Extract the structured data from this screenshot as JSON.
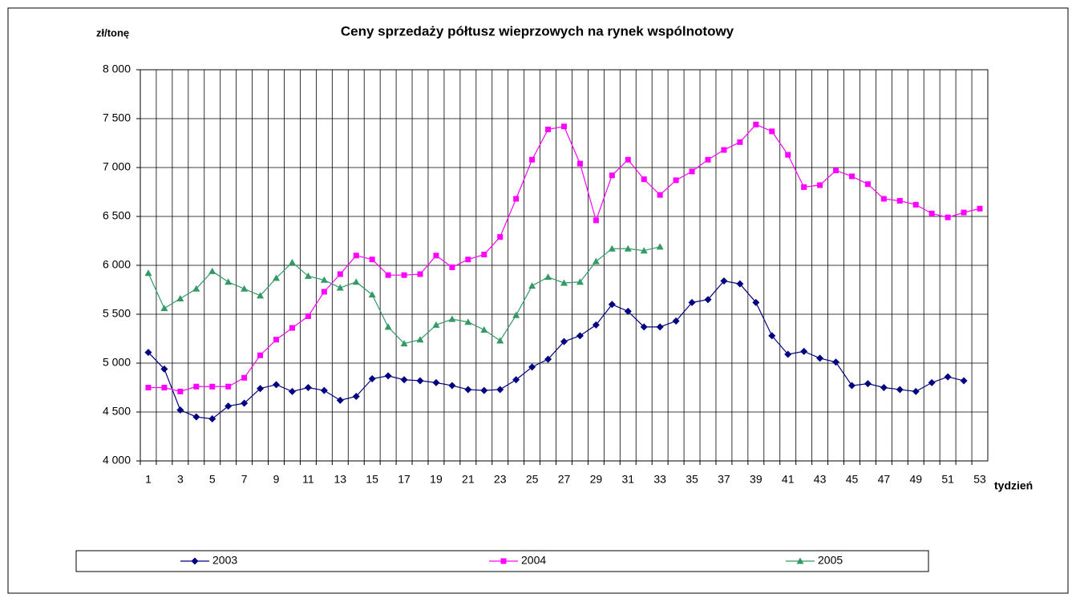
{
  "chart_data": {
    "type": "line",
    "title": "Ceny sprzedaży półtusz wieprzowych na rynek wspólnotowy",
    "y_label": "zł/tonę",
    "x_label": "tydzień",
    "categories": [
      1,
      null,
      3,
      null,
      5,
      null,
      7,
      null,
      9,
      null,
      11,
      null,
      13,
      null,
      15,
      null,
      17,
      null,
      19,
      null,
      21,
      null,
      23,
      null,
      25,
      null,
      27,
      null,
      29,
      null,
      31,
      null,
      33,
      null,
      35,
      null,
      37,
      null,
      39,
      null,
      41,
      null,
      43,
      null,
      45,
      null,
      47,
      null,
      49,
      null,
      51,
      null,
      53
    ],
    "ylim": [
      4000,
      8000
    ],
    "yticks": [
      {
        "value": 4000,
        "label": "4 000"
      },
      {
        "value": 4500,
        "label": "4 500"
      },
      {
        "value": 5000,
        "label": "5 000"
      },
      {
        "value": 5500,
        "label": "5 500"
      },
      {
        "value": 6000,
        "label": "6 000"
      },
      {
        "value": 6500,
        "label": "6 500"
      },
      {
        "value": 7000,
        "label": "7 000"
      },
      {
        "value": 7500,
        "label": "7 500"
      },
      {
        "value": 8000,
        "label": "8 000"
      }
    ],
    "grid": true,
    "legend": "bottom",
    "series": [
      {
        "name": "2003",
        "color": "#000080",
        "marker": "diamond",
        "values": [
          5110,
          4940,
          4520,
          4450,
          4430,
          4560,
          4590,
          4740,
          4780,
          4710,
          4750,
          4720,
          4620,
          4660,
          4840,
          4870,
          4830,
          4820,
          4800,
          4770,
          4730,
          4720,
          4730,
          4830,
          4960,
          5040,
          5220,
          5280,
          5390,
          5600,
          5530,
          5370,
          5370,
          5430,
          5620,
          5650,
          5840,
          5810,
          5620,
          5280,
          5090,
          5120,
          5050,
          5010,
          4770,
          4790,
          4750,
          4730,
          4710,
          4800,
          4860,
          4820,
          null
        ]
      },
      {
        "name": "2004",
        "color": "#ff00ff",
        "marker": "square",
        "values": [
          4750,
          4750,
          4710,
          4760,
          4760,
          4760,
          4850,
          5080,
          5240,
          5360,
          5480,
          5730,
          5910,
          6100,
          6060,
          5900,
          5900,
          5910,
          6100,
          5980,
          6060,
          6110,
          6290,
          6680,
          7080,
          7390,
          7420,
          7040,
          6460,
          6920,
          7080,
          6880,
          6720,
          6870,
          6960,
          7080,
          7180,
          7260,
          7440,
          7370,
          7130,
          6800,
          6820,
          6970,
          6910,
          6830,
          6680,
          6660,
          6620,
          6530,
          6490,
          6540,
          6580
        ]
      },
      {
        "name": "2005",
        "color": "#339966",
        "marker": "triangle",
        "values": [
          5920,
          5560,
          5660,
          5760,
          5940,
          5830,
          5760,
          5690,
          5870,
          6030,
          5890,
          5850,
          5770,
          5830,
          5700,
          5370,
          5200,
          5240,
          5390,
          5450,
          5420,
          5340,
          5230,
          5490,
          5790,
          5880,
          5820,
          5830,
          6040,
          6170,
          6170,
          6150,
          6190,
          null,
          null,
          null,
          null,
          null,
          null,
          null,
          null,
          null,
          null,
          null,
          null,
          null,
          null,
          null,
          null,
          null,
          null,
          null,
          null
        ]
      }
    ]
  }
}
